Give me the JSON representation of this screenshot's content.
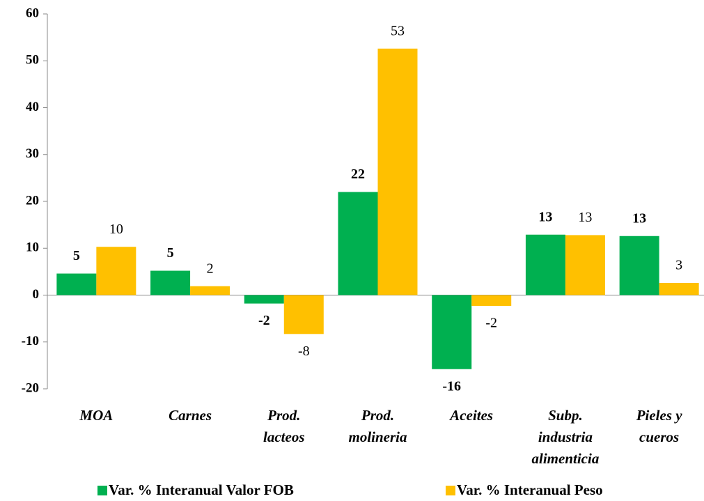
{
  "chart_data": {
    "type": "bar",
    "categories": [
      [
        "MOA"
      ],
      [
        "Carnes"
      ],
      [
        "Prod.",
        "lacteos"
      ],
      [
        "Prod.",
        "molineria"
      ],
      [
        "Aceites"
      ],
      [
        "Subp.",
        "industria",
        "alimenticia"
      ],
      [
        "Pieles y",
        "cueros"
      ]
    ],
    "series": [
      {
        "name": "Var. % Interanual Valor FOB",
        "color": "#00b050",
        "values": [
          4.6,
          5.2,
          -1.8,
          22.0,
          -15.8,
          12.9,
          12.6
        ],
        "value_labels": [
          "5",
          "5",
          "-2",
          "22",
          "-16",
          "13",
          "13"
        ]
      },
      {
        "name": "Var. % Interanual Peso",
        "color": "#ffc000",
        "values": [
          10.3,
          1.9,
          -8.3,
          52.6,
          -2.3,
          12.8,
          2.6
        ],
        "value_labels": [
          "10",
          "2",
          "-8",
          "53",
          "-2",
          "13",
          "3"
        ]
      }
    ],
    "ylim": [
      -20,
      60
    ],
    "yticks": [
      -20,
      -10,
      0,
      10,
      20,
      30,
      40,
      50,
      60
    ],
    "legend": "bottom"
  }
}
